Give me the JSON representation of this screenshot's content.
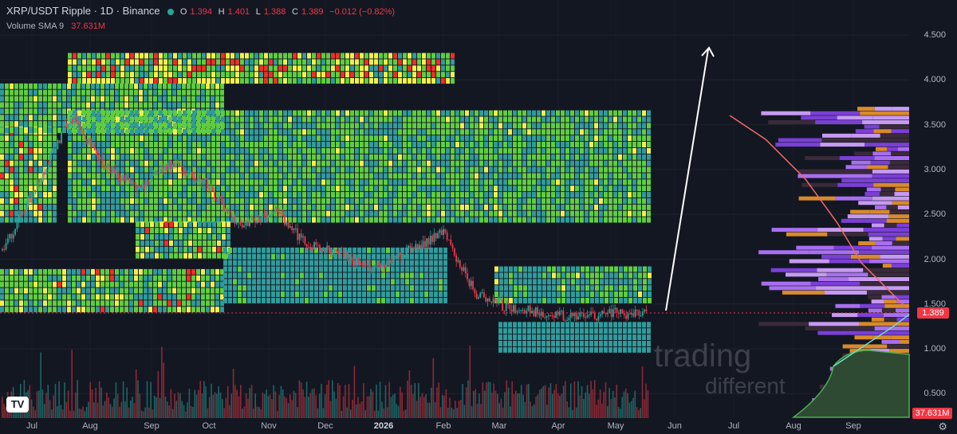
{
  "header": {
    "symbol": "XRP/USDT Ripple · 1D · Binance",
    "o_label": "O",
    "o_value": "1.394",
    "h_label": "H",
    "h_value": "1.401",
    "l_label": "L",
    "l_value": "1.388",
    "c_label": "C",
    "c_value": "1.389",
    "change": "−0.012 (−0.82%)"
  },
  "volume": {
    "label": "Volume",
    "sma": "SMA 9",
    "value": "37.631M"
  },
  "price_axis": {
    "ticks": [
      "4.500",
      "4.000",
      "3.500",
      "3.000",
      "2.500",
      "2.000",
      "1.500",
      "1.000",
      "0.500"
    ],
    "last_price": "1.389"
  },
  "time_axis": {
    "ticks": [
      "Jul",
      "Aug",
      "Sep",
      "Oct",
      "Nov",
      "Dec",
      "2026",
      "Feb",
      "Mar",
      "Apr",
      "May",
      "Jun",
      "Jul",
      "Aug",
      "Sep"
    ]
  },
  "watermark": {
    "line1": "trading",
    "line2": "different"
  },
  "logo": {
    "text": "TV"
  },
  "colors": {
    "up": "#26a69a",
    "down": "#f23645",
    "heat_hot": "#ef2f24",
    "heat_warm": "#f2f04a",
    "heat_mid": "#5fcd3f",
    "heat_cool": "#2f9b9b",
    "profile": "#9b5be8"
  },
  "chart_data": {
    "type": "candlestick",
    "title": "XRP/USDT Ripple · 1D · Binance",
    "ylim": [
      0.3,
      4.7
    ],
    "x_range": [
      "Jul 2025",
      "Sep 2026"
    ],
    "last": {
      "open": 1.394,
      "high": 1.401,
      "low": 1.388,
      "close": 1.389,
      "change": -0.012,
      "change_pct": -0.82
    },
    "close_path": [
      {
        "x": "Jul",
        "y": 2.1
      },
      {
        "x": "Jul",
        "y": 2.8
      },
      {
        "x": "Aug",
        "y": 3.6
      },
      {
        "x": "Aug",
        "y": 3.05
      },
      {
        "x": "Sep",
        "y": 2.8
      },
      {
        "x": "Sep",
        "y": 3.05
      },
      {
        "x": "Oct",
        "y": 2.85
      },
      {
        "x": "Oct",
        "y": 2.35
      },
      {
        "x": "Nov",
        "y": 2.55
      },
      {
        "x": "Nov",
        "y": 2.15
      },
      {
        "x": "Dec",
        "y": 2.05
      },
      {
        "x": "Dec",
        "y": 1.9
      },
      {
        "x": "2026",
        "y": 2.1
      },
      {
        "x": "2026",
        "y": 2.3
      },
      {
        "x": "Feb",
        "y": 1.6
      },
      {
        "x": "Feb",
        "y": 1.45
      },
      {
        "x": "Mar",
        "y": 1.4
      },
      {
        "x": "Apr",
        "y": 1.35
      },
      {
        "x": "May",
        "y": 1.4
      },
      {
        "x": "May",
        "y": 1.39
      }
    ],
    "volume_sma9_last": "37.631M",
    "heatmap_levels": [
      {
        "price_from": 3.9,
        "price_to": 4.35,
        "intensity": "high"
      },
      {
        "price_from": 2.4,
        "price_to": 3.65,
        "intensity": "medium"
      },
      {
        "price_from": 1.4,
        "price_to": 1.9,
        "intensity": "high"
      }
    ]
  }
}
